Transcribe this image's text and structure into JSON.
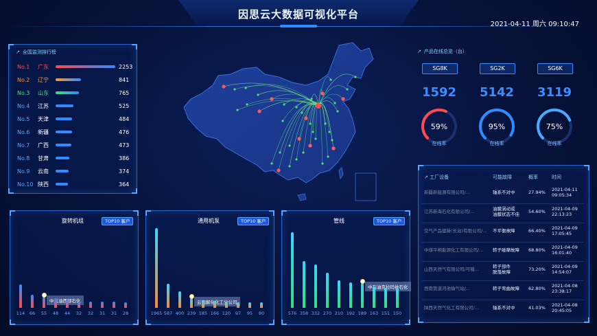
{
  "header": {
    "title": "因思云大数据可视化平台",
    "datetime": "2021-04-11  周六  09:10:47"
  },
  "ranking": {
    "title": "全国监测排行榜",
    "rows": [
      {
        "no": "No.1",
        "city": "广东",
        "value": "2253",
        "frac": 0.95,
        "color": "#ff4b4b",
        "grad": "#2f8cff"
      },
      {
        "no": "No.2",
        "city": "辽宁",
        "value": "841",
        "frac": 0.4,
        "color": "#ff9a2e",
        "grad": "#2f8cff"
      },
      {
        "no": "No.3",
        "city": "山东",
        "value": "765",
        "frac": 0.37,
        "color": "#46e07b",
        "grad": "#2f8cff"
      },
      {
        "no": "No.4",
        "city": "江苏",
        "value": "525",
        "frac": 0.28,
        "color": "#2f8cff",
        "grad": "#2f8cff"
      },
      {
        "no": "No.5",
        "city": "天津",
        "value": "484",
        "frac": 0.26,
        "color": "#2f8cff",
        "grad": "#2f8cff"
      },
      {
        "no": "No.6",
        "city": "新疆",
        "value": "476",
        "frac": 0.26,
        "color": "#2f8cff",
        "grad": "#2f8cff"
      },
      {
        "no": "No.7",
        "city": "广西",
        "value": "473",
        "frac": 0.25,
        "color": "#2f8cff",
        "grad": "#2f8cff"
      },
      {
        "no": "No.8",
        "city": "甘肃",
        "value": "386",
        "frac": 0.22,
        "color": "#2f8cff",
        "grad": "#2f8cff"
      },
      {
        "no": "No.9",
        "city": "云南",
        "value": "374",
        "frac": 0.21,
        "color": "#2f8cff",
        "grad": "#2f8cff"
      },
      {
        "no": "No.10",
        "city": "陕西",
        "value": "364",
        "frac": 0.2,
        "color": "#2f8cff",
        "grad": "#2f8cff"
      }
    ]
  },
  "products": {
    "title": "产品在线总览（台）",
    "items": [
      {
        "label": "SG8K",
        "value": "1592",
        "pct": "59%",
        "frac": 0.59,
        "status": "在线率",
        "color": "#ff4b4b"
      },
      {
        "label": "SG2K",
        "value": "5142",
        "pct": "95%",
        "frac": 0.95,
        "status": "在线率",
        "color": "#2f8cff"
      },
      {
        "label": "SG6K",
        "value": "3119",
        "pct": "75%",
        "frac": 0.75,
        "status": "在线率",
        "color": "#4aa8ff"
      }
    ]
  },
  "table": {
    "headers": [
      "工厂设备",
      "可能故障",
      "概率",
      "时间"
    ],
    "rows": [
      {
        "device": "新疆新能源有限公司/...",
        "fault": "轴系不对中",
        "prob": "27.94%",
        "time": "2021-04-11\n09:05:34"
      },
      {
        "device": "江苏新海石化有限公司/...",
        "fault": "油膜涡动或\n油膜状态不佳",
        "prob": "54.60%",
        "time": "2021-04-09\n22:13:23"
      },
      {
        "device": "空气产品建新(长治)有限公司/...",
        "fault": "不平衡故障",
        "prob": "66.40%",
        "time": "2021-04-09\n17:05:45"
      },
      {
        "device": "中煤平朔能源化工有限公司/...",
        "fault": "转子碰摩故障",
        "prob": "68.80%",
        "time": "2021-04-09\n16:01:40"
      },
      {
        "device": "山西天然气有限公司/可循...",
        "fault": "转子部件\n脱落故障",
        "prob": "73.20%",
        "time": "2021-04-09\n14:54:07"
      },
      {
        "device": "西南管道河池输气站/...",
        "fault": "转子弯曲故障",
        "prob": "62.80%",
        "time": "2021-04-08\n23:38:17"
      },
      {
        "device": "陕西天然气化工有限公司/...",
        "fault": "轴系不对中",
        "prob": "41.03%",
        "time": "2021-04-08\n20:45:05"
      }
    ]
  },
  "panels": [
    {
      "title": "旋转机组",
      "badge": "TOP10 客户",
      "tooltip": "中石油西部石化",
      "values": [
        114,
        66,
        55,
        48,
        44,
        32,
        32,
        31,
        31,
        28
      ],
      "max": 400,
      "highlight": 2,
      "colors": [
        "#3d8bff",
        "#ff4b4b"
      ]
    },
    {
      "title": "通用机泵",
      "badge": "TOP10 客户",
      "tooltip": "云南解化化工分公司",
      "values": [
        1965,
        587,
        400,
        239,
        185,
        166,
        120,
        97,
        95,
        80
      ],
      "max": 2000,
      "highlight": 3,
      "colors": [
        "#3ad6ff",
        "#ff8a2e"
      ]
    },
    {
      "title": "管线",
      "badge": "TOP10 客户",
      "tooltip": "中石油克拉玛依石化",
      "values": [
        576,
        358,
        332,
        270,
        210,
        192,
        189,
        163,
        151,
        150
      ],
      "max": 620,
      "highlight": 6,
      "colors": [
        "#3ad6ff",
        "#31e07a"
      ]
    }
  ]
}
